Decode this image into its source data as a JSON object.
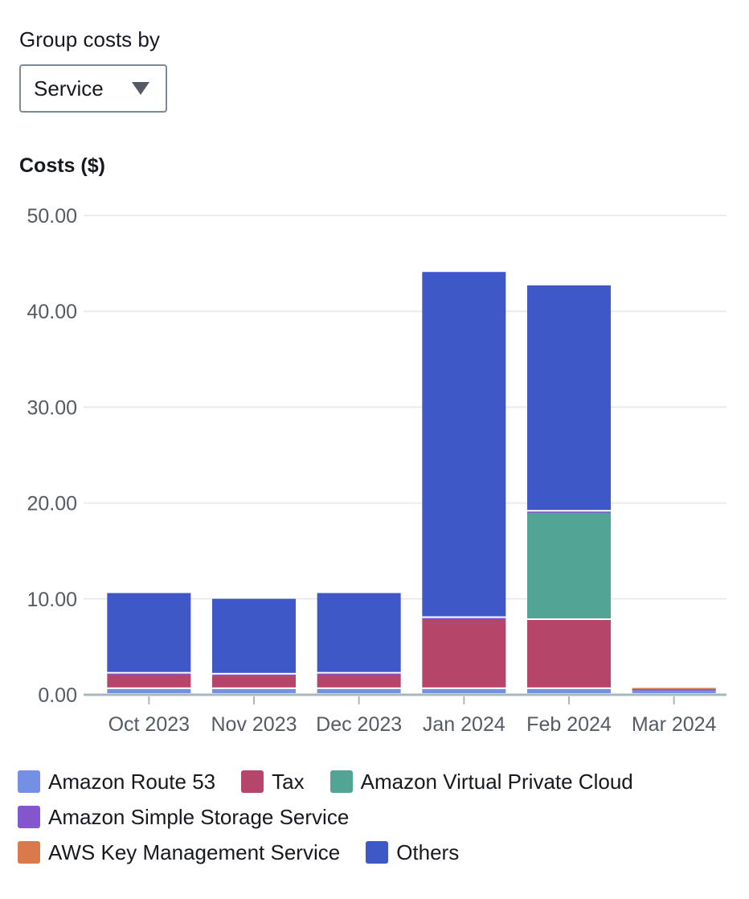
{
  "controls": {
    "group_by_label": "Group costs by",
    "group_by_value": "Service"
  },
  "chart_data": {
    "type": "bar",
    "stacked": true,
    "title": "",
    "ylabel": "Costs ($)",
    "xlabel": "",
    "ylim": [
      0,
      50
    ],
    "yticks": [
      "0.00",
      "10.00",
      "20.00",
      "30.00",
      "40.00",
      "50.00"
    ],
    "grid": true,
    "legend_position": "bottom",
    "categories": [
      "Oct 2023",
      "Nov 2023",
      "Dec 2023",
      "Jan 2024",
      "Feb 2024",
      "Mar 2024"
    ],
    "series": [
      {
        "name": "Amazon Route 53",
        "color": "#7490e5",
        "values": [
          0.6,
          0.6,
          0.6,
          0.6,
          0.6,
          0.5
        ]
      },
      {
        "name": "Tax",
        "color": "#b5466a",
        "values": [
          1.6,
          1.5,
          1.6,
          7.4,
          7.2,
          0.1
        ]
      },
      {
        "name": "Amazon Virtual Private Cloud",
        "color": "#52a594",
        "values": [
          0,
          0,
          0,
          0,
          11.3,
          0
        ]
      },
      {
        "name": "Amazon Simple Storage Service",
        "color": "#8456ce",
        "values": [
          0.01,
          0.01,
          0.01,
          0.01,
          0.01,
          0.01
        ]
      },
      {
        "name": "AWS Key Management Service",
        "color": "#da7a4c",
        "values": [
          0,
          0,
          0,
          0,
          0,
          0.1
        ]
      },
      {
        "name": "Others",
        "color": "#3f58c7",
        "values": [
          8.4,
          7.9,
          8.4,
          36.1,
          23.6,
          0
        ]
      }
    ]
  },
  "legend_rows": [
    [
      "Amazon Route 53",
      "Tax",
      "Amazon Virtual Private Cloud"
    ],
    [
      "Amazon Simple Storage Service"
    ],
    [
      "AWS Key Management Service",
      "Others"
    ]
  ]
}
